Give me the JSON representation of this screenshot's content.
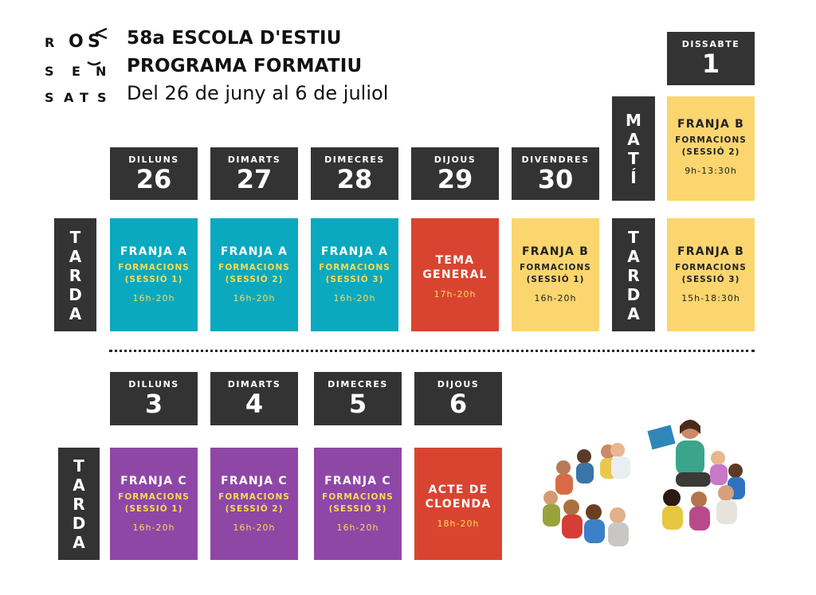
{
  "logo": {
    "row1": [
      "R",
      "O",
      "S"
    ],
    "row2": [
      "S",
      "E",
      "N"
    ],
    "row3": [
      "S",
      "A",
      "T"
    ]
  },
  "header": {
    "line1": "58a ESCOLA D'ESTIU",
    "line2": "PROGRAMA FORMATIU",
    "dates": "Del 26 de juny al 6 de juliol"
  },
  "week1": {
    "days": [
      {
        "name": "DILLUNS",
        "num": "26"
      },
      {
        "name": "DIMARTS",
        "num": "27"
      },
      {
        "name": "DIMECRES",
        "num": "28"
      },
      {
        "name": "DIJOUS",
        "num": "29"
      },
      {
        "name": "DIVENDRES",
        "num": "30"
      }
    ],
    "saturday": {
      "name": "DISSABTE",
      "num": "1"
    },
    "mati_label": [
      "M",
      "A",
      "T",
      "Í"
    ],
    "tarda_label": [
      "T",
      "A",
      "R",
      "D",
      "A"
    ],
    "sessions": [
      {
        "title": "FRANJA A",
        "sub1": "FORMACIONS",
        "sub2": "(SESSIÓ 1)",
        "hours": "16h-20h"
      },
      {
        "title": "FRANJA A",
        "sub1": "FORMACIONS",
        "sub2": "(SESSIÓ 2)",
        "hours": "16h-20h"
      },
      {
        "title": "FRANJA A",
        "sub1": "FORMACIONS",
        "sub2": "(SESSIÓ 3)",
        "hours": "16h-20h"
      },
      {
        "title1": "TEMA",
        "title2": "GENERAL",
        "hours": "17h-20h"
      },
      {
        "title": "FRANJA B",
        "sub1": "FORMACIONS",
        "sub2": "(SESSIÓ 1)",
        "hours": "16h-20h"
      }
    ],
    "sat_morning": {
      "title": "FRANJA B",
      "sub1": "FORMACIONS",
      "sub2": "(SESSIÓ 2)",
      "hours": "9h-13:30h"
    },
    "sat_afternoon": {
      "title": "FRANJA B",
      "sub1": "FORMACIONS",
      "sub2": "(SESSIÓ 3)",
      "hours": "15h-18:30h"
    }
  },
  "week2": {
    "days": [
      {
        "name": "DILLUNS",
        "num": "3"
      },
      {
        "name": "DIMARTS",
        "num": "4"
      },
      {
        "name": "DIMECRES",
        "num": "5"
      },
      {
        "name": "DIJOUS",
        "num": "6"
      }
    ],
    "tarda_label": [
      "T",
      "A",
      "R",
      "D",
      "A"
    ],
    "sessions": [
      {
        "title": "FRANJA C",
        "sub1": "FORMACIONS",
        "sub2": "(SESSIÓ 1)",
        "hours": "16h-20h"
      },
      {
        "title": "FRANJA C",
        "sub1": "FORMACIONS",
        "sub2": "(SESSIÓ 2)",
        "hours": "16h-20h"
      },
      {
        "title": "FRANJA C",
        "sub1": "FORMACIONS",
        "sub2": "(SESSIÓ 3)",
        "hours": "16h-20h"
      },
      {
        "title1": "ACTE DE",
        "title2": "CLOENDA",
        "hours": "18h-20h"
      }
    ]
  },
  "colors": {
    "dark": "#333333",
    "teal": "#0aa9c0",
    "yellow": "#fbd66e",
    "red": "#d94431",
    "purple": "#8f47a6",
    "accent_text": "#f6dc55"
  },
  "illustration": "children-reading-circle-illustration"
}
